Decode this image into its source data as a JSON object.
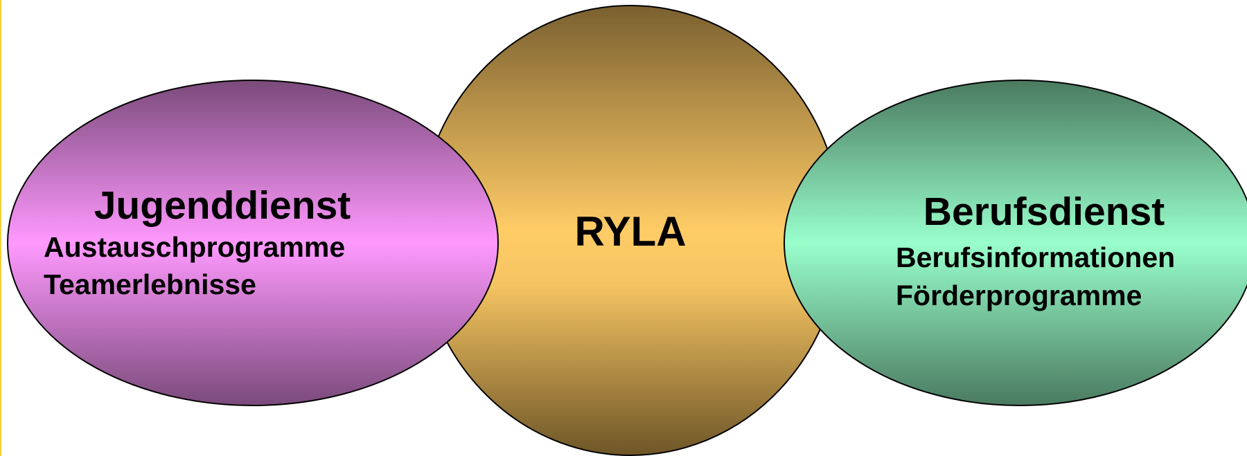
{
  "nodes": [
    {
      "title": "Jugenddienst",
      "items": [
        "Austauschprogramme",
        "Teamerlebnisse"
      ]
    },
    {
      "title": "RYLA"
    },
    {
      "title": "Berufsdienst",
      "items": [
        "Berufsinformationen",
        "Förderprogramme"
      ]
    }
  ]
}
